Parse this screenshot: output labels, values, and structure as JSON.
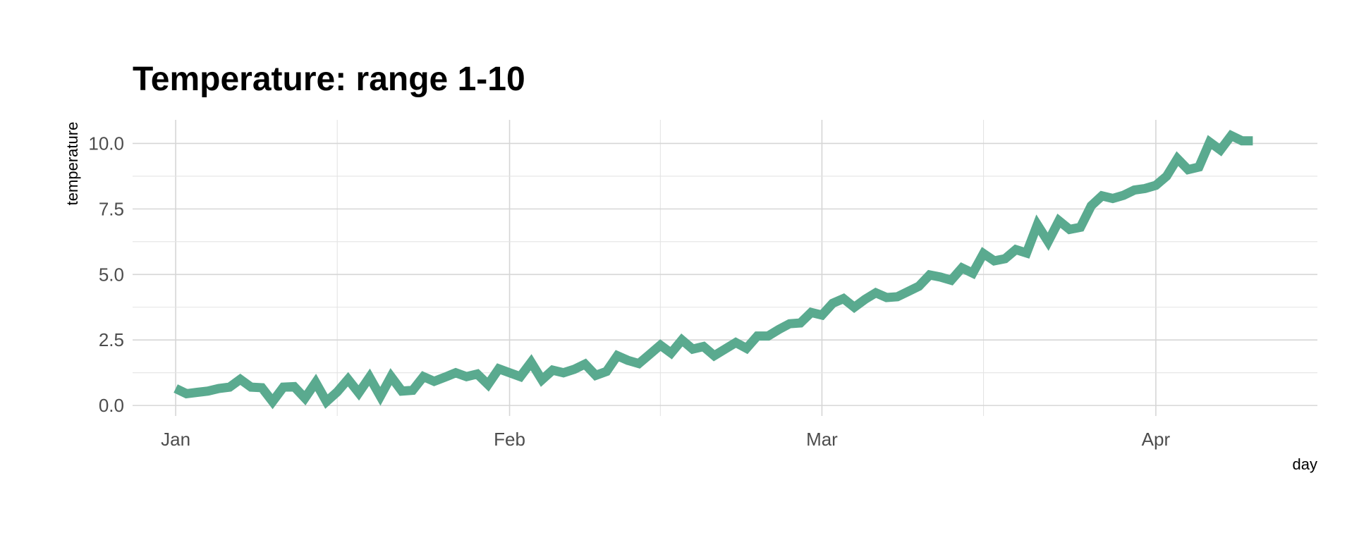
{
  "chart_data": {
    "type": "line",
    "title": "Temperature: range 1-10",
    "xlabel": "day",
    "ylabel": "temperature",
    "x_ticks": [
      "Jan",
      "Feb",
      "Mar",
      "Apr"
    ],
    "y_ticks": [
      "0.0",
      "2.5",
      "5.0",
      "7.5",
      "10.0"
    ],
    "ylim": [
      -0.4,
      10.9
    ],
    "xlim": [
      "2020-12-28",
      "2020-04-16"
    ],
    "grid": true,
    "line_color": "#5aaa8f",
    "x": [
      "2020-01-01",
      "2020-01-02",
      "2020-01-03",
      "2020-01-04",
      "2020-01-05",
      "2020-01-06",
      "2020-01-07",
      "2020-01-08",
      "2020-01-09",
      "2020-01-10",
      "2020-01-11",
      "2020-01-12",
      "2020-01-13",
      "2020-01-14",
      "2020-01-15",
      "2020-01-16",
      "2020-01-17",
      "2020-01-18",
      "2020-01-19",
      "2020-01-20",
      "2020-01-21",
      "2020-01-22",
      "2020-01-23",
      "2020-01-24",
      "2020-01-25",
      "2020-01-26",
      "2020-01-27",
      "2020-01-28",
      "2020-01-29",
      "2020-01-30",
      "2020-01-31",
      "2020-02-01",
      "2020-02-02",
      "2020-02-03",
      "2020-02-04",
      "2020-02-05",
      "2020-02-06",
      "2020-02-07",
      "2020-02-08",
      "2020-02-09",
      "2020-02-10",
      "2020-02-11",
      "2020-02-12",
      "2020-02-13",
      "2020-02-14",
      "2020-02-15",
      "2020-02-16",
      "2020-02-17",
      "2020-02-18",
      "2020-02-19",
      "2020-02-20",
      "2020-02-21",
      "2020-02-22",
      "2020-02-23",
      "2020-02-24",
      "2020-02-25",
      "2020-02-26",
      "2020-02-27",
      "2020-02-28",
      "2020-02-29",
      "2020-03-01",
      "2020-03-02",
      "2020-03-03",
      "2020-03-04",
      "2020-03-05",
      "2020-03-06",
      "2020-03-07",
      "2020-03-08",
      "2020-03-09",
      "2020-03-10",
      "2020-03-11",
      "2020-03-12",
      "2020-03-13",
      "2020-03-14",
      "2020-03-15",
      "2020-03-16",
      "2020-03-17",
      "2020-03-18",
      "2020-03-19",
      "2020-03-20",
      "2020-03-21",
      "2020-03-22",
      "2020-03-23",
      "2020-03-24",
      "2020-03-25",
      "2020-03-26",
      "2020-03-27",
      "2020-03-28",
      "2020-03-29",
      "2020-03-30",
      "2020-03-31",
      "2020-04-01",
      "2020-04-02",
      "2020-04-03",
      "2020-04-04",
      "2020-04-05",
      "2020-04-06",
      "2020-04-07",
      "2020-04-08",
      "2020-04-09",
      "2020-04-10"
    ],
    "series": [
      {
        "values": [
          0.65,
          0.45,
          0.5,
          0.55,
          0.65,
          0.7,
          1.0,
          0.7,
          0.68,
          0.15,
          0.7,
          0.72,
          0.28,
          0.88,
          0.15,
          0.52,
          1.0,
          0.48,
          1.08,
          0.35,
          1.1,
          0.55,
          0.58,
          1.1,
          0.92,
          1.08,
          1.25,
          1.1,
          1.2,
          0.8,
          1.4,
          1.25,
          1.1,
          1.65,
          0.98,
          1.35,
          1.25,
          1.38,
          1.58,
          1.15,
          1.3,
          1.9,
          1.72,
          1.6,
          1.95,
          2.3,
          2.0,
          2.5,
          2.15,
          2.25,
          1.9,
          2.15,
          2.4,
          2.18,
          2.65,
          2.65,
          2.9,
          3.12,
          3.15,
          3.55,
          3.45,
          3.9,
          4.08,
          3.75,
          4.05,
          4.3,
          4.12,
          4.15,
          4.35,
          4.55,
          4.98,
          4.9,
          4.78,
          5.25,
          5.05,
          5.8,
          5.52,
          5.6,
          5.95,
          5.82,
          6.9,
          6.25,
          7.05,
          6.72,
          6.8,
          7.62,
          8.0,
          7.9,
          8.02,
          8.22,
          8.28,
          8.4,
          8.75,
          9.42,
          9.0,
          9.1,
          10.05,
          9.75,
          10.3,
          10.1,
          10.1
        ]
      }
    ]
  }
}
